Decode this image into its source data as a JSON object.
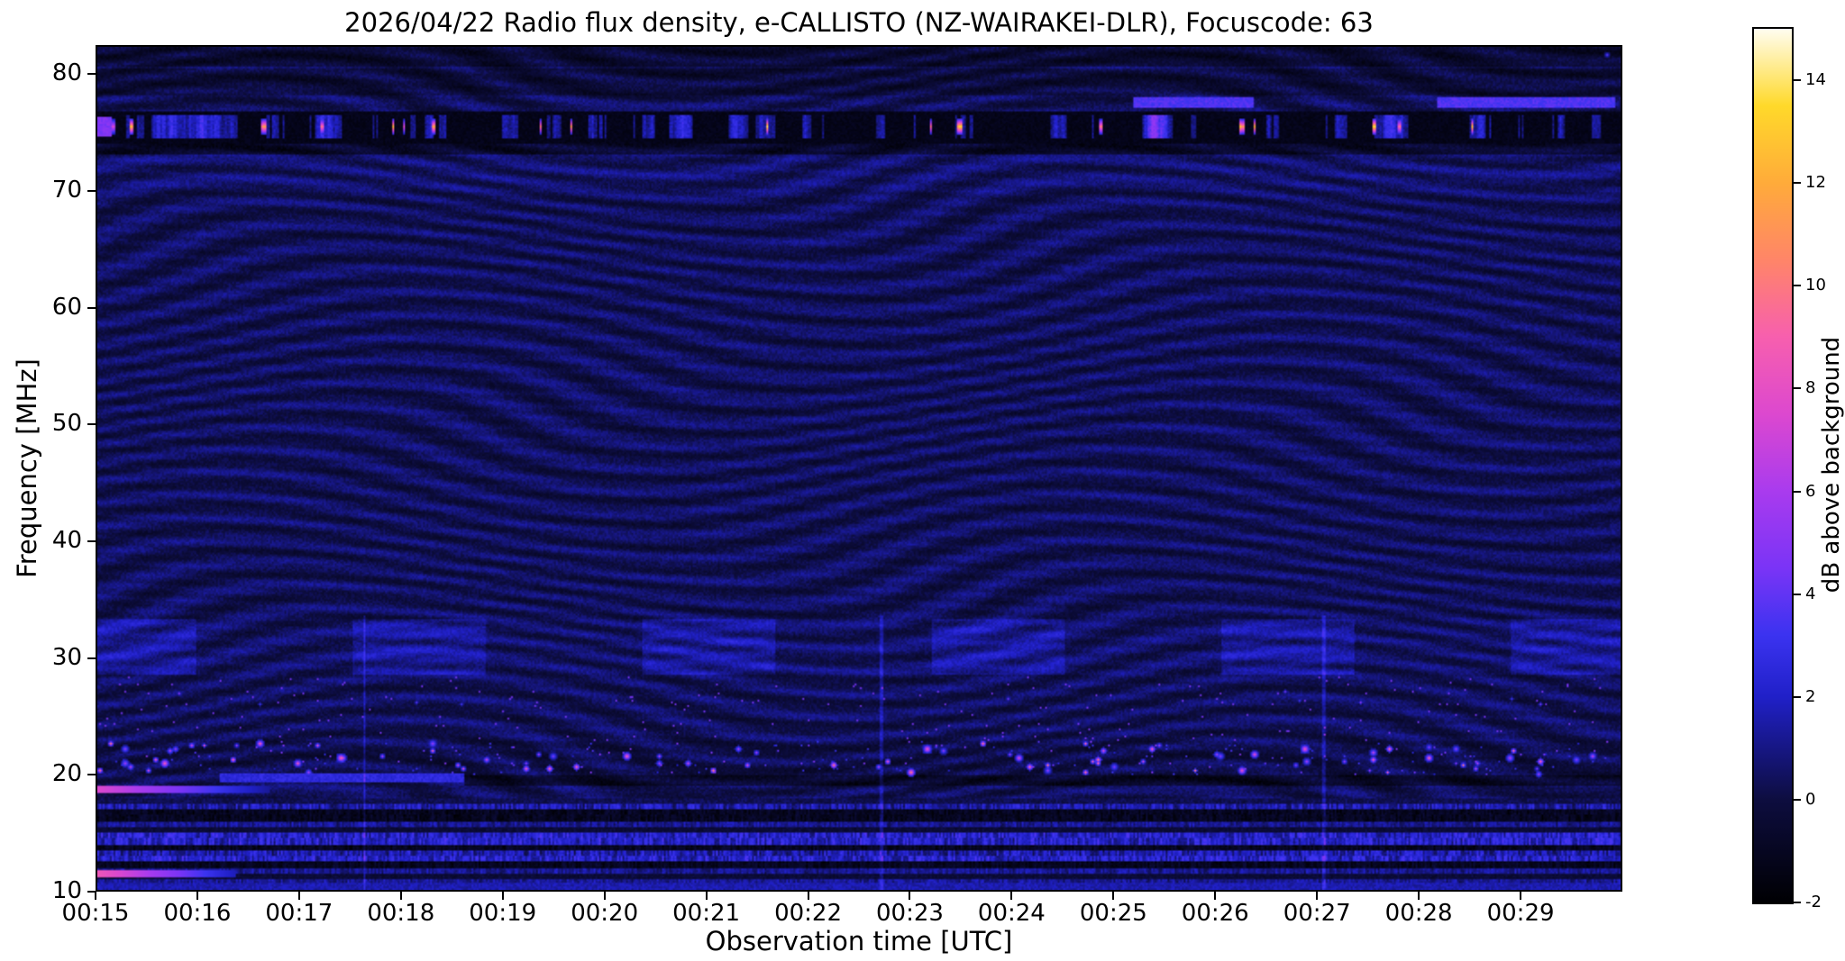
{
  "chart_data": {
    "type": "heatmap",
    "title": "2026/04/22  Radio flux density, e-CALLISTO (NZ-WAIRAKEI-DLR), Focuscode: 63",
    "xlabel": "Observation time [UTC]",
    "ylabel": "Frequency [MHz]",
    "x_ticks": [
      "00:15",
      "00:16",
      "00:17",
      "00:18",
      "00:19",
      "00:20",
      "00:21",
      "00:22",
      "00:23",
      "00:24",
      "00:25",
      "00:26",
      "00:27",
      "00:28",
      "00:29"
    ],
    "x_range": {
      "start": "00:15",
      "end": "00:30",
      "minutes": 15
    },
    "ylim": [
      10,
      82.5
    ],
    "y_ticks": [
      80,
      70,
      60,
      50,
      40,
      30,
      20,
      10
    ],
    "grid": false,
    "colorbar": {
      "label": "dB above background",
      "ticks": [
        14,
        12,
        10,
        8,
        6,
        4,
        2,
        0,
        -2
      ],
      "range": [
        -2,
        15
      ],
      "colormap_stops": [
        [
          -2,
          "#000003"
        ],
        [
          0,
          "#0d0d3f"
        ],
        [
          2,
          "#2020c8"
        ],
        [
          3.2,
          "#3b33f0"
        ],
        [
          4.5,
          "#7a34f6"
        ],
        [
          6,
          "#a93bee"
        ],
        [
          7.5,
          "#dc48cf"
        ],
        [
          9,
          "#f75fae"
        ],
        [
          10.5,
          "#ff8568"
        ],
        [
          12,
          "#ffab3a"
        ],
        [
          13.5,
          "#ffd92a"
        ],
        [
          15,
          "#fffdf0"
        ]
      ]
    },
    "features": [
      {
        "name": "background",
        "db": 0.35,
        "note": "dark blue background with fine wavy moire interference pattern"
      },
      {
        "name": "rfi-band-76mhz",
        "freq_mhz": [
          74.3,
          77.05
        ],
        "db_base": -1.6,
        "burst_db": [
          8,
          15
        ],
        "note": "dark interference band with intermittent blue patches and bright yellow/orange bursts"
      },
      {
        "name": "blue-line-78mhz",
        "freq_mhz": [
          77.3,
          78.3
        ],
        "db": 3.6,
        "segments_min": [
          [
            10.2,
            11.4
          ],
          [
            13.2,
            14.95
          ]
        ]
      },
      {
        "name": "enhanced-band-30mhz",
        "freq_mhz": [
          28.5,
          33.3
        ],
        "db": 1.0,
        "note": "blockwise brighter patches alternating roughly every 1.4 min"
      },
      {
        "name": "speckle-band-21mhz",
        "freq_mhz": [
          19.8,
          22.7
        ],
        "db": [
          5,
          10
        ],
        "note": "scattered pink/magenta point bursts around 20-22 MHz"
      },
      {
        "name": "streak-18mhz",
        "freq_mhz": [
          18.2,
          18.95
        ],
        "time_min": [
          0,
          1.7
        ],
        "db": 7
      },
      {
        "name": "streak-11mhz",
        "freq_mhz": [
          10.95,
          11.55
        ],
        "time_min": [
          0,
          1.35
        ],
        "db": 8
      },
      {
        "name": "striped-noise-low",
        "freq_mhz": [
          10,
          17.85
        ],
        "db_range": [
          -1.5,
          3
        ],
        "note": "horizontal RFI stripes with barcode-like vertical speckle"
      }
    ]
  }
}
